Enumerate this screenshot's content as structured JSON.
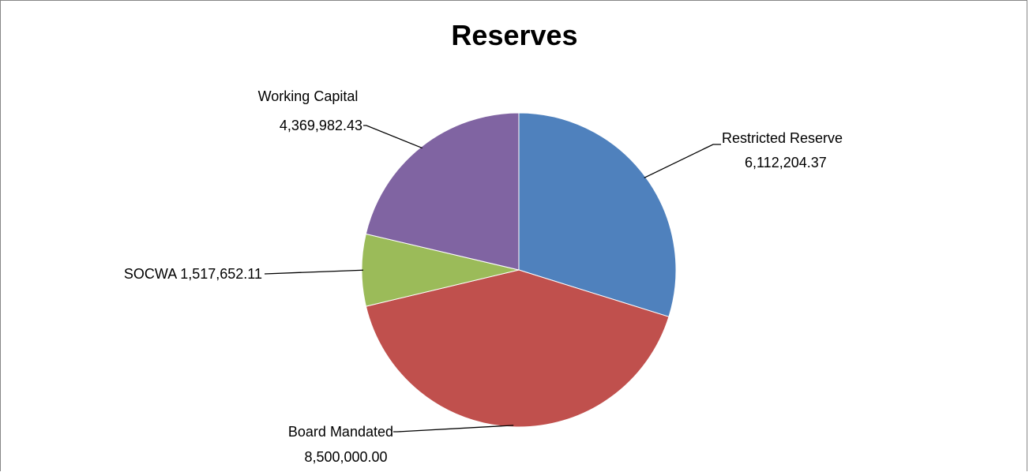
{
  "chart_data": {
    "type": "pie",
    "title": "Reserves",
    "start_angle_deg": 0,
    "direction": "clockwise",
    "slices": [
      {
        "label": "Restricted Reserve",
        "value_label": "6,112,204.37",
        "value": 6112204.37,
        "color": "#4F81BD"
      },
      {
        "label": "Board Mandated",
        "value_label": "8,500,000.00",
        "value": 8500000.0,
        "color": "#C0504D"
      },
      {
        "label": "SOCWA",
        "value_label": "1,517,652.11",
        "value": 1517652.11,
        "color": "#9BBB59"
      },
      {
        "label": "Working Capital",
        "value_label": "4,369,982.43",
        "value": 4369982.43,
        "color": "#8064A2"
      }
    ],
    "legend": "none"
  }
}
